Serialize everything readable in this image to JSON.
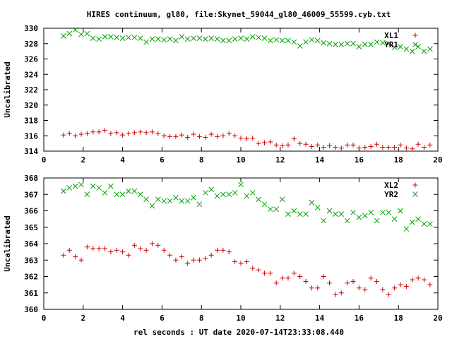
{
  "title": "HIRES continuum, gl80, file:Skynet_59044_gl80_46009_55599.cyb.txt",
  "xlabel": "rel seconds : UT date 2020-07-14T23:33:08.440",
  "chart_data": [
    {
      "type": "scatter",
      "ylabel": "Uncalibrated",
      "xlim": [
        0,
        20
      ],
      "ylim": [
        314,
        330
      ],
      "xticks": [
        0,
        2,
        4,
        6,
        8,
        10,
        12,
        14,
        16,
        18,
        20
      ],
      "yticks": [
        314,
        316,
        318,
        320,
        322,
        324,
        326,
        328,
        330
      ],
      "legend": "top-right",
      "series": [
        {
          "name": "XL1",
          "marker": "plus",
          "color": "#d00000",
          "x": [
            1.0,
            1.3,
            1.6,
            1.9,
            2.2,
            2.5,
            2.8,
            3.1,
            3.4,
            3.7,
            4.0,
            4.3,
            4.6,
            4.9,
            5.2,
            5.5,
            5.8,
            6.1,
            6.4,
            6.7,
            7.0,
            7.3,
            7.6,
            7.9,
            8.2,
            8.5,
            8.8,
            9.1,
            9.4,
            9.7,
            10.0,
            10.3,
            10.6,
            10.9,
            11.2,
            11.5,
            11.8,
            12.1,
            12.4,
            12.7,
            13.0,
            13.3,
            13.6,
            13.9,
            14.2,
            14.5,
            14.8,
            15.1,
            15.4,
            15.7,
            16.0,
            16.3,
            16.6,
            16.9,
            17.2,
            17.5,
            17.8,
            18.1,
            18.4,
            18.7,
            19.0,
            19.3,
            19.6
          ],
          "y": [
            316.1,
            316.3,
            316.0,
            316.2,
            316.3,
            316.5,
            316.5,
            316.7,
            316.3,
            316.4,
            316.1,
            316.3,
            316.4,
            316.5,
            316.4,
            316.5,
            316.3,
            316.0,
            315.9,
            315.9,
            316.1,
            315.8,
            316.2,
            315.9,
            315.8,
            316.2,
            315.9,
            316.0,
            316.3,
            316.0,
            315.7,
            315.6,
            315.7,
            315.0,
            315.1,
            315.2,
            314.8,
            314.7,
            314.8,
            315.6,
            315.0,
            314.9,
            314.6,
            314.8,
            314.5,
            314.7,
            314.5,
            314.4,
            314.8,
            314.8,
            314.4,
            314.5,
            314.6,
            314.9,
            314.5,
            314.5,
            314.5,
            314.8,
            314.4,
            314.3,
            314.9,
            314.5,
            314.8
          ]
        },
        {
          "name": "YR1",
          "marker": "cross",
          "color": "#00a000",
          "x": [
            1.0,
            1.3,
            1.6,
            1.9,
            2.2,
            2.5,
            2.8,
            3.1,
            3.4,
            3.7,
            4.0,
            4.3,
            4.6,
            4.9,
            5.2,
            5.5,
            5.8,
            6.1,
            6.4,
            6.7,
            7.0,
            7.3,
            7.6,
            7.9,
            8.2,
            8.5,
            8.8,
            9.1,
            9.4,
            9.7,
            10.0,
            10.3,
            10.6,
            10.9,
            11.2,
            11.5,
            11.8,
            12.1,
            12.4,
            12.7,
            13.0,
            13.3,
            13.6,
            13.9,
            14.2,
            14.5,
            14.8,
            15.1,
            15.4,
            15.7,
            16.0,
            16.3,
            16.6,
            16.9,
            17.2,
            17.5,
            17.8,
            18.1,
            18.4,
            18.7,
            19.0,
            19.3,
            19.6
          ],
          "y": [
            329.0,
            329.3,
            329.8,
            329.2,
            329.3,
            328.7,
            328.6,
            328.9,
            328.9,
            328.8,
            328.7,
            328.8,
            328.8,
            328.7,
            328.2,
            328.6,
            328.6,
            328.5,
            328.6,
            328.4,
            328.9,
            328.6,
            328.7,
            328.7,
            328.6,
            328.7,
            328.6,
            328.4,
            328.4,
            328.6,
            328.7,
            328.6,
            328.9,
            328.8,
            328.7,
            328.4,
            328.5,
            328.4,
            328.4,
            328.2,
            327.7,
            328.2,
            328.5,
            328.4,
            328.1,
            328.0,
            327.9,
            327.9,
            328.0,
            328.0,
            327.6,
            327.9,
            327.9,
            328.2,
            328.1,
            328.0,
            327.5,
            327.6,
            327.3,
            327.0,
            327.6,
            327.0,
            327.3
          ]
        }
      ]
    },
    {
      "type": "scatter",
      "ylabel": "Uncalibrated",
      "xlim": [
        0,
        20
      ],
      "ylim": [
        360,
        368
      ],
      "xticks": [
        0,
        2,
        4,
        6,
        8,
        10,
        12,
        14,
        16,
        18,
        20
      ],
      "yticks": [
        360,
        361,
        362,
        363,
        364,
        365,
        366,
        367,
        368
      ],
      "legend": "top-right",
      "series": [
        {
          "name": "XL2",
          "marker": "plus",
          "color": "#d00000",
          "x": [
            1.0,
            1.3,
            1.6,
            1.9,
            2.2,
            2.5,
            2.8,
            3.1,
            3.4,
            3.7,
            4.0,
            4.3,
            4.6,
            4.9,
            5.2,
            5.5,
            5.8,
            6.1,
            6.4,
            6.7,
            7.0,
            7.3,
            7.6,
            7.9,
            8.2,
            8.5,
            8.8,
            9.1,
            9.4,
            9.7,
            10.0,
            10.3,
            10.6,
            10.9,
            11.2,
            11.5,
            11.8,
            12.1,
            12.4,
            12.7,
            13.0,
            13.3,
            13.6,
            13.9,
            14.2,
            14.5,
            14.8,
            15.1,
            15.4,
            15.7,
            16.0,
            16.3,
            16.6,
            16.9,
            17.2,
            17.5,
            17.8,
            18.1,
            18.4,
            18.7,
            19.0,
            19.3,
            19.6
          ],
          "y": [
            363.3,
            363.6,
            363.2,
            363.0,
            363.8,
            363.7,
            363.7,
            363.7,
            363.5,
            363.6,
            363.5,
            363.3,
            363.9,
            363.7,
            363.6,
            364.0,
            363.9,
            363.6,
            363.3,
            363.0,
            363.2,
            362.8,
            363.0,
            363.0,
            363.1,
            363.3,
            363.6,
            363.6,
            363.5,
            362.9,
            362.8,
            362.9,
            362.5,
            362.4,
            362.2,
            362.2,
            361.6,
            361.9,
            361.9,
            362.2,
            362.0,
            361.7,
            361.3,
            361.3,
            362.0,
            361.6,
            360.9,
            361.0,
            361.6,
            361.7,
            361.3,
            361.2,
            361.9,
            361.7,
            361.2,
            360.9,
            361.3,
            361.5,
            361.4,
            361.8,
            361.9,
            361.8,
            361.5
          ]
        },
        {
          "name": "YR2",
          "marker": "cross",
          "color": "#00a000",
          "x": [
            1.0,
            1.3,
            1.6,
            1.9,
            2.2,
            2.5,
            2.8,
            3.1,
            3.4,
            3.7,
            4.0,
            4.3,
            4.6,
            4.9,
            5.2,
            5.5,
            5.8,
            6.1,
            6.4,
            6.7,
            7.0,
            7.3,
            7.6,
            7.9,
            8.2,
            8.5,
            8.8,
            9.1,
            9.4,
            9.7,
            10.0,
            10.3,
            10.6,
            10.9,
            11.2,
            11.5,
            11.8,
            12.1,
            12.4,
            12.7,
            13.0,
            13.3,
            13.6,
            13.9,
            14.2,
            14.5,
            14.8,
            15.1,
            15.4,
            15.7,
            16.0,
            16.3,
            16.6,
            16.9,
            17.2,
            17.5,
            17.8,
            18.1,
            18.4,
            18.7,
            19.0,
            19.3,
            19.6
          ],
          "y": [
            367.2,
            367.4,
            367.5,
            367.6,
            367.0,
            367.5,
            367.4,
            367.1,
            367.5,
            367.0,
            367.0,
            367.2,
            367.2,
            367.0,
            366.7,
            366.3,
            366.7,
            366.6,
            366.6,
            366.8,
            366.6,
            366.6,
            366.8,
            366.4,
            367.1,
            367.3,
            366.9,
            367.0,
            367.0,
            367.1,
            367.6,
            366.9,
            367.1,
            366.7,
            366.4,
            366.1,
            366.1,
            366.7,
            365.8,
            366.0,
            365.8,
            365.8,
            366.5,
            366.2,
            365.4,
            366.0,
            365.8,
            365.8,
            365.4,
            365.9,
            365.6,
            365.7,
            365.9,
            365.4,
            365.9,
            365.9,
            365.5,
            366.0,
            364.9,
            365.3,
            365.5,
            365.2,
            365.2
          ]
        }
      ]
    }
  ]
}
